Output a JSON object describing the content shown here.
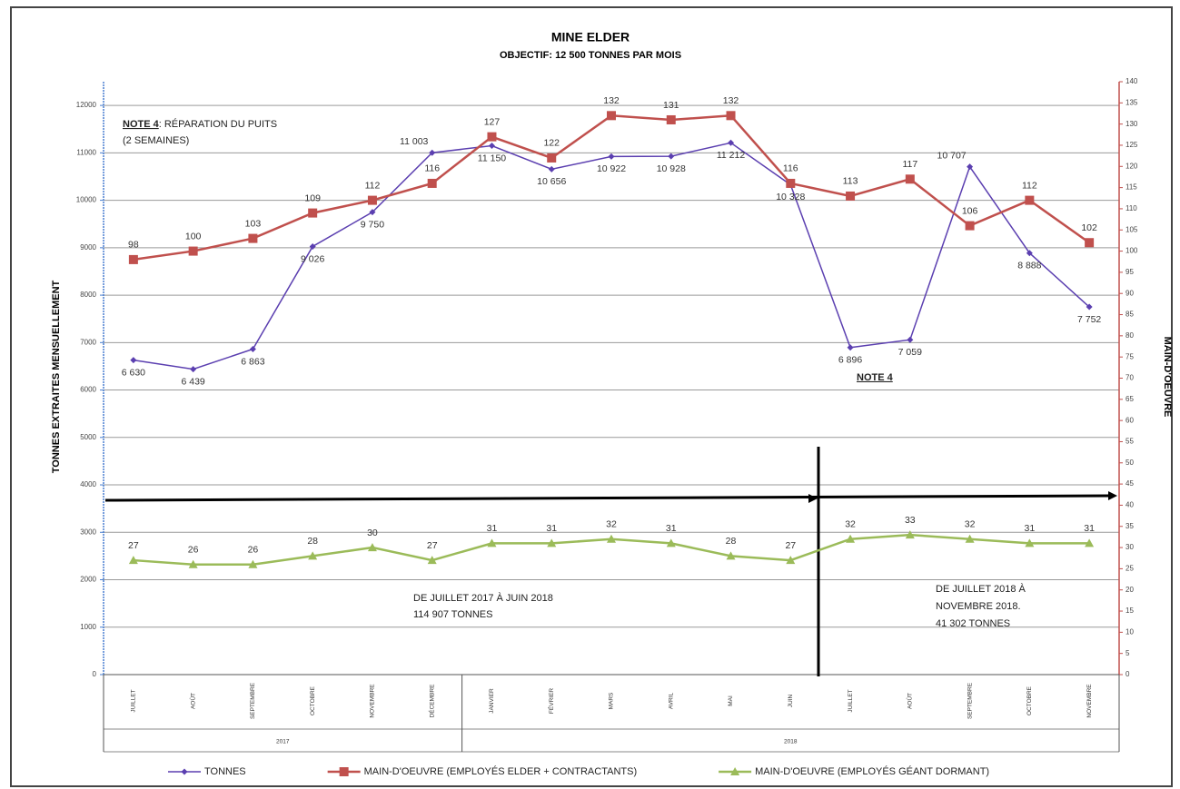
{
  "chart_data": {
    "type": "line",
    "title": "MINE ELDER",
    "subtitle": "OBJECTIF: 12 500 TONNES PAR MOIS",
    "y_label": "TONNES EXTRAITES MENSUELLEMENT",
    "y2_label": "MAIN-D'OEUVRE",
    "categories": [
      "JUILLET",
      "AOÛT",
      "SEPTEMBRE",
      "OCTOBRE",
      "NOVEMBRE",
      "DÉCEMBRE",
      "JANVIER",
      "FÉVRIER",
      "MARS",
      "AVRIL",
      "MAI",
      "JUIN",
      "JUILLET",
      "AOÛT",
      "SEPTEMBRE",
      "OCTOBRE",
      "NOVEMBRE"
    ],
    "year_groups": [
      {
        "label": "2017",
        "count": 6
      },
      {
        "label": "2018",
        "count": 11
      }
    ],
    "series": [
      {
        "name": "TONNES",
        "color": "#5b3fb0",
        "marker": "diamond",
        "values": [
          6630,
          6439,
          6863,
          9026,
          9750,
          11003,
          11150,
          10656,
          10922,
          10928,
          11212,
          10328,
          6896,
          7059,
          10707,
          8888,
          7752
        ],
        "value_labels": [
          "6 630",
          "6 439",
          "6 863",
          "9 026",
          "9 750",
          "11 003",
          "11 150",
          "10 656",
          "10 922",
          "10 928",
          "11 212",
          "10 328",
          "6 896",
          "7 059",
          "10 707",
          "8 888",
          "7 752"
        ]
      },
      {
        "name": "MAIN-D'OEUVRE (EMPLOYÉS ELDER + CONTRACTANTS)",
        "color": "#c0504d",
        "marker": "square",
        "axis": "y2",
        "values": [
          98,
          100,
          103,
          109,
          112,
          116,
          127,
          122,
          132,
          131,
          132,
          116,
          113,
          117,
          106,
          112,
          102
        ]
      },
      {
        "name": "MAIN-D'OEUVRE (EMPLOYÉS GÉANT DORMANT)",
        "color": "#9bbb59",
        "marker": "triangle",
        "axis": "y2",
        "values": [
          27,
          26,
          26,
          28,
          30,
          27,
          31,
          31,
          32,
          31,
          28,
          27,
          32,
          33,
          32,
          31,
          31
        ]
      }
    ],
    "ylim": [
      0,
      12500
    ],
    "yticks": [
      0,
      1000,
      2000,
      3000,
      4000,
      5000,
      6000,
      7000,
      8000,
      9000,
      10000,
      11000,
      12000
    ],
    "y2lim": [
      0,
      140
    ],
    "y2ticks": [
      0,
      5,
      10,
      15,
      20,
      25,
      30,
      35,
      40,
      45,
      50,
      55,
      60,
      65,
      70,
      75,
      80,
      85,
      90,
      95,
      100,
      105,
      110,
      115,
      120,
      125,
      130,
      135,
      140
    ],
    "grid": true,
    "legend": "bottom",
    "annotations": [
      "NOTE 4",
      ": RÉPARATION DU PUITS",
      "(2 SEMAINES)",
      "NOTE 4",
      "DE JUILLET 2017 À JUIN 2018",
      "114 907 TONNES",
      "DE JUILLET 2018 À",
      "NOVEMBRE 2018.",
      "41 302 TONNES"
    ]
  }
}
